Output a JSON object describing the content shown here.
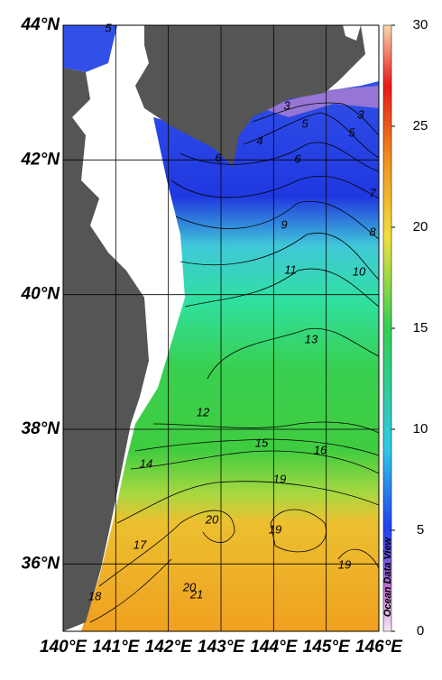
{
  "map": {
    "lat_labels": [
      {
        "value": 44,
        "label": "44°N"
      },
      {
        "value": 42,
        "label": "42°N"
      },
      {
        "value": 40,
        "label": "40°N"
      },
      {
        "value": 38,
        "label": "38°N"
      },
      {
        "value": 36,
        "label": "36°N"
      }
    ],
    "lon_labels": [
      {
        "value": 140,
        "label": "140°E"
      },
      {
        "value": 141,
        "label": "141°E"
      },
      {
        "value": 142,
        "label": "142°E"
      },
      {
        "value": 143,
        "label": "143°E"
      },
      {
        "value": 144,
        "label": "144°E"
      },
      {
        "value": 145,
        "label": "145°E"
      },
      {
        "value": 146,
        "label": "146°E"
      }
    ],
    "lon_range": [
      140,
      146
    ],
    "lat_range": [
      35,
      44
    ],
    "colorbar": {
      "range": [
        0,
        30
      ],
      "ticks": [
        0,
        5,
        10,
        15,
        20,
        25,
        30
      ]
    },
    "contour_labels": [
      5,
      3,
      3,
      5,
      5,
      4,
      6,
      6,
      7,
      9,
      8,
      11,
      10,
      13,
      12,
      15,
      16,
      14,
      19,
      20,
      19,
      17,
      19,
      20,
      21,
      18
    ],
    "watermark": "Ocean Data View"
  }
}
